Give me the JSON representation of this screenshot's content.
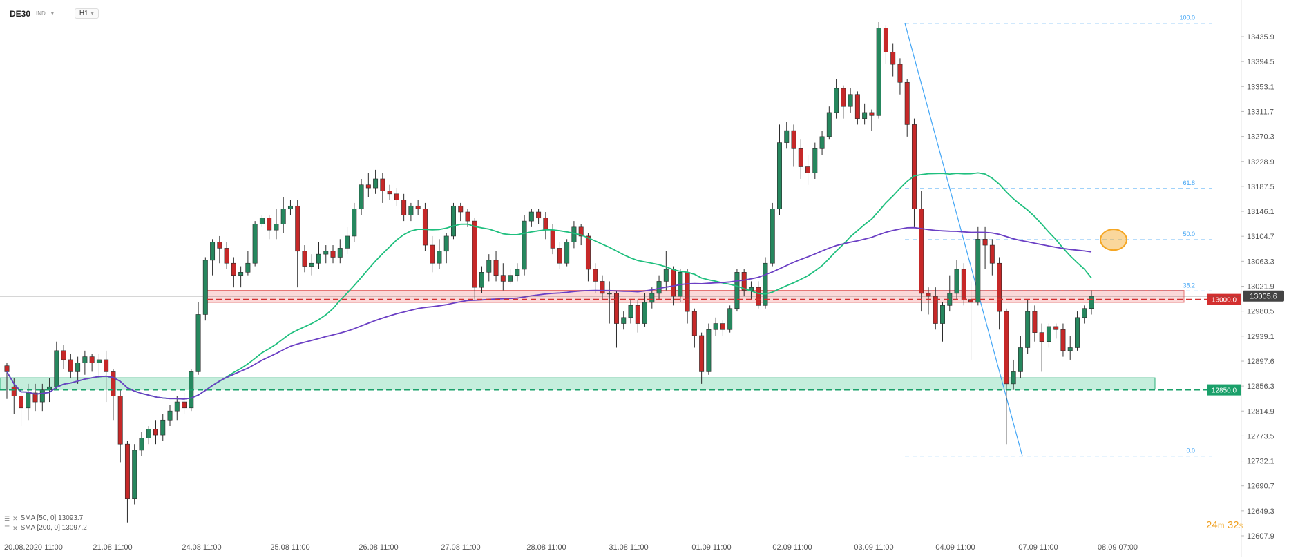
{
  "header": {
    "symbol": "DE30",
    "symbol_sub": "IND",
    "timeframe": "H1"
  },
  "legend": [
    {
      "label": "SMA [50, 0] 13093.7"
    },
    {
      "label": "SMA [200, 0] 13097.2"
    }
  ],
  "timer": {
    "minutes": "24",
    "m_unit": "m",
    "seconds": "32",
    "s_unit": "s"
  },
  "colors": {
    "up": "#26875e",
    "down": "#c62828",
    "sma50": "#1fbf7e",
    "sma200": "#6b3fc4",
    "fib": "#42a5f5",
    "resistance": "#d32f2f",
    "support": "#1aa06a",
    "highlight": "#f5a623"
  },
  "chart_data": {
    "type": "candlestick",
    "ylim": [
      12607.0,
      12470.0
    ],
    "y_ticks": [
      "13435.9",
      "13394.5",
      "13353.1",
      "13311.7",
      "13270.3",
      "13228.9",
      "13187.5",
      "13146.1",
      "13104.7",
      "13063.3",
      "13021.9",
      "12980.5",
      "12939.1",
      "12897.6",
      "12856.3",
      "12814.9",
      "12773.5",
      "12732.1",
      "12690.7",
      "12649.3",
      "12607.9"
    ],
    "x_ticks": [
      "20.08.2020  11:00",
      "21.08  11:00",
      "24.08  11:00",
      "25.08  11:00",
      "26.08  11:00",
      "27.08  11:00",
      "28.08  11:00",
      "31.08  11:00",
      "01.09  11:00",
      "02.09  11:00",
      "03.09  11:00",
      "04.09  11:00",
      "07.09  11:00",
      "08.09  07:00"
    ],
    "last_price": "13005.6",
    "levels": [
      {
        "label": "13000.0",
        "value": 13000.0,
        "kind": "resistance"
      },
      {
        "label": "12850.0",
        "value": 12850.0,
        "kind": "support"
      }
    ],
    "fib": {
      "high": 13458,
      "low": 12740,
      "levels": [
        {
          "label": "100.0",
          "value": 13458
        },
        {
          "label": "61.8",
          "value": 13184
        },
        {
          "label": "50.0",
          "value": 13099
        },
        {
          "label": "38.2",
          "value": 13014
        },
        {
          "label": "0.0",
          "value": 12740
        }
      ]
    },
    "zones": [
      {
        "kind": "resistance",
        "from": 12995,
        "to": 13015
      },
      {
        "kind": "support",
        "from": 12851,
        "to": 12870
      }
    ],
    "candles": [
      [
        12890,
        12880,
        12835,
        12895
      ],
      [
        12855,
        12840,
        12810,
        12870
      ],
      [
        12840,
        12820,
        12790,
        12855
      ],
      [
        12820,
        12845,
        12800,
        12860
      ],
      [
        12845,
        12830,
        12815,
        12860
      ],
      [
        12830,
        12850,
        12815,
        12860
      ],
      [
        12850,
        12855,
        12830,
        12870
      ],
      [
        12855,
        12915,
        12850,
        12930
      ],
      [
        12915,
        12900,
        12885,
        12925
      ],
      [
        12900,
        12880,
        12870,
        12910
      ],
      [
        12880,
        12895,
        12860,
        12905
      ],
      [
        12895,
        12905,
        12875,
        12915
      ],
      [
        12905,
        12895,
        12880,
        12910
      ],
      [
        12895,
        12900,
        12870,
        12910
      ],
      [
        12900,
        12880,
        12830,
        12915
      ],
      [
        12880,
        12840,
        12800,
        12885
      ],
      [
        12840,
        12760,
        12730,
        12850
      ],
      [
        12760,
        12670,
        12630,
        12765
      ],
      [
        12670,
        12750,
        12660,
        12760
      ],
      [
        12750,
        12770,
        12740,
        12780
      ],
      [
        12770,
        12785,
        12760,
        12790
      ],
      [
        12785,
        12775,
        12760,
        12800
      ],
      [
        12775,
        12800,
        12765,
        12810
      ],
      [
        12800,
        12815,
        12790,
        12825
      ],
      [
        12815,
        12830,
        12800,
        12840
      ],
      [
        12830,
        12820,
        12810,
        12845
      ],
      [
        12820,
        12880,
        12815,
        12885
      ],
      [
        12880,
        12975,
        12875,
        12995
      ],
      [
        12975,
        13065,
        12965,
        13070
      ],
      [
        13065,
        13095,
        13040,
        13100
      ],
      [
        13095,
        13085,
        13060,
        13105
      ],
      [
        13085,
        13060,
        13050,
        13095
      ],
      [
        13060,
        13040,
        13020,
        13070
      ],
      [
        13040,
        13045,
        13020,
        13055
      ],
      [
        13045,
        13060,
        13040,
        13080
      ],
      [
        13060,
        13125,
        13055,
        13130
      ],
      [
        13125,
        13135,
        13120,
        13140
      ],
      [
        13135,
        13115,
        13100,
        13140
      ],
      [
        13115,
        13125,
        13100,
        13150
      ],
      [
        13125,
        13150,
        13110,
        13170
      ],
      [
        13150,
        13155,
        13140,
        13165
      ],
      [
        13155,
        13080,
        13020,
        13165
      ],
      [
        13080,
        13055,
        13045,
        13090
      ],
      [
        13055,
        13060,
        13040,
        13075
      ],
      [
        13060,
        13075,
        13050,
        13095
      ],
      [
        13075,
        13080,
        13060,
        13090
      ],
      [
        13080,
        13070,
        13060,
        13090
      ],
      [
        13070,
        13085,
        13060,
        13100
      ],
      [
        13085,
        13105,
        13075,
        13120
      ],
      [
        13105,
        13150,
        13095,
        13160
      ],
      [
        13150,
        13190,
        13140,
        13200
      ],
      [
        13190,
        13185,
        13170,
        13210
      ],
      [
        13185,
        13200,
        13175,
        13215
      ],
      [
        13200,
        13180,
        13160,
        13210
      ],
      [
        13180,
        13175,
        13165,
        13190
      ],
      [
        13175,
        13165,
        13155,
        13185
      ],
      [
        13165,
        13140,
        13130,
        13175
      ],
      [
        13140,
        13155,
        13130,
        13160
      ],
      [
        13155,
        13150,
        13140,
        13165
      ],
      [
        13150,
        13090,
        13080,
        13160
      ],
      [
        13090,
        13060,
        13045,
        13105
      ],
      [
        13060,
        13080,
        13050,
        13100
      ],
      [
        13080,
        13105,
        13060,
        13110
      ],
      [
        13105,
        13155,
        13100,
        13160
      ],
      [
        13155,
        13145,
        13130,
        13160
      ],
      [
        13145,
        13130,
        13120,
        13150
      ],
      [
        13130,
        13020,
        13000,
        13135
      ],
      [
        13020,
        13045,
        13010,
        13055
      ],
      [
        13045,
        13065,
        13030,
        13075
      ],
      [
        13065,
        13040,
        13030,
        13080
      ],
      [
        13040,
        13030,
        13015,
        13060
      ],
      [
        13030,
        13040,
        13025,
        13050
      ],
      [
        13040,
        13050,
        13030,
        13060
      ],
      [
        13050,
        13130,
        13040,
        13140
      ],
      [
        13130,
        13145,
        13120,
        13150
      ],
      [
        13145,
        13135,
        13125,
        13150
      ],
      [
        13135,
        13115,
        13100,
        13145
      ],
      [
        13115,
        13085,
        13075,
        13125
      ],
      [
        13085,
        13060,
        13050,
        13095
      ],
      [
        13060,
        13095,
        13055,
        13100
      ],
      [
        13095,
        13120,
        13085,
        13130
      ],
      [
        13120,
        13105,
        13090,
        13125
      ],
      [
        13105,
        13050,
        13030,
        13110
      ],
      [
        13050,
        13030,
        13010,
        13060
      ],
      [
        13030,
        13010,
        13000,
        13040
      ],
      [
        13010,
        13010,
        12960,
        13030
      ],
      [
        13010,
        12960,
        12920,
        13015
      ],
      [
        12960,
        12970,
        12950,
        12980
      ],
      [
        12970,
        12990,
        12960,
        13000
      ],
      [
        12990,
        12960,
        12945,
        13000
      ],
      [
        12960,
        12995,
        12955,
        13010
      ],
      [
        12995,
        13010,
        12985,
        13020
      ],
      [
        13010,
        13030,
        13000,
        13040
      ],
      [
        13030,
        13050,
        13015,
        13080
      ],
      [
        13050,
        13005,
        12990,
        13055
      ],
      [
        13005,
        13045,
        12995,
        13050
      ],
      [
        13045,
        12980,
        12960,
        13050
      ],
      [
        12980,
        12940,
        12920,
        12985
      ],
      [
        12940,
        12880,
        12860,
        12945
      ],
      [
        12880,
        12950,
        12875,
        12960
      ],
      [
        12950,
        12960,
        12940,
        12970
      ],
      [
        12960,
        12950,
        12940,
        12965
      ],
      [
        12950,
        12985,
        12945,
        12990
      ],
      [
        12985,
        13045,
        12980,
        13050
      ],
      [
        13045,
        13015,
        13005,
        13050
      ],
      [
        13015,
        13020,
        13000,
        13030
      ],
      [
        13020,
        12990,
        12985,
        13030
      ],
      [
        12990,
        13060,
        12985,
        13070
      ],
      [
        13060,
        13150,
        13055,
        13160
      ],
      [
        13150,
        13260,
        13140,
        13290
      ],
      [
        13260,
        13280,
        13250,
        13295
      ],
      [
        13280,
        13250,
        13220,
        13290
      ],
      [
        13250,
        13220,
        13200,
        13265
      ],
      [
        13220,
        13210,
        13190,
        13240
      ],
      [
        13210,
        13250,
        13200,
        13260
      ],
      [
        13250,
        13270,
        13240,
        13280
      ],
      [
        13270,
        13310,
        13265,
        13320
      ],
      [
        13310,
        13350,
        13300,
        13365
      ],
      [
        13350,
        13320,
        13300,
        13355
      ],
      [
        13320,
        13340,
        13310,
        13350
      ],
      [
        13340,
        13300,
        13290,
        13345
      ],
      [
        13300,
        13310,
        13290,
        13325
      ],
      [
        13310,
        13305,
        13280,
        13315
      ],
      [
        13305,
        13450,
        13300,
        13460
      ],
      [
        13450,
        13410,
        13390,
        13455
      ],
      [
        13410,
        13390,
        13370,
        13425
      ],
      [
        13390,
        13360,
        13340,
        13400
      ],
      [
        13360,
        13290,
        13270,
        13365
      ],
      [
        13290,
        13150,
        13120,
        13300
      ],
      [
        13150,
        13010,
        12980,
        13180
      ],
      [
        13010,
        13005,
        12975,
        13020
      ],
      [
        13005,
        12960,
        12950,
        13020
      ],
      [
        12960,
        12990,
        12930,
        12995
      ],
      [
        12990,
        13010,
        12980,
        13040
      ],
      [
        13010,
        13050,
        13000,
        13065
      ],
      [
        13050,
        13000,
        12990,
        13060
      ],
      [
        13000,
        12995,
        12900,
        13030
      ],
      [
        12995,
        13100,
        12990,
        13120
      ],
      [
        13100,
        13090,
        13050,
        13120
      ],
      [
        13090,
        13060,
        13040,
        13100
      ],
      [
        13060,
        12980,
        12950,
        13070
      ],
      [
        12980,
        12860,
        12760,
        12985
      ],
      [
        12860,
        12880,
        12850,
        12900
      ],
      [
        12880,
        12920,
        12870,
        12940
      ],
      [
        12920,
        12980,
        12910,
        13000
      ],
      [
        12980,
        12945,
        12930,
        12990
      ],
      [
        12945,
        12930,
        12880,
        12960
      ],
      [
        12930,
        12955,
        12920,
        12960
      ],
      [
        12955,
        12950,
        12935,
        12960
      ],
      [
        12950,
        12915,
        12905,
        12960
      ],
      [
        12915,
        12920,
        12900,
        12940
      ],
      [
        12920,
        12970,
        12915,
        12980
      ],
      [
        12970,
        12985,
        12960,
        12990
      ],
      [
        12985,
        13005,
        12975,
        13015
      ]
    ]
  }
}
